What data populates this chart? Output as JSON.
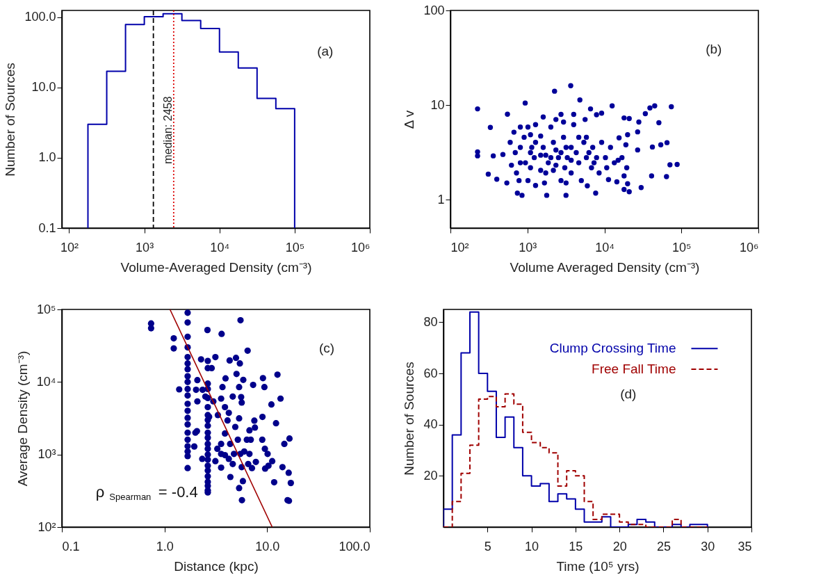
{
  "chart_data": [
    {
      "type": "histogram",
      "xlabel": "Volume-Averaged Density (cm⁻³)",
      "ylabel": "Number of Sources",
      "log": "xy",
      "color": "#0000aa",
      "bins": [
        177.8,
        316.2,
        562.3,
        1000,
        1778,
        3162,
        5623,
        10000,
        17783,
        31623,
        56234,
        100000
      ],
      "values": [
        3,
        17,
        79,
        102,
        112,
        90,
        69,
        32,
        19,
        7,
        5
      ],
      "xlim": [
        80,
        1000000
      ],
      "xticks": [
        {
          "value": 100,
          "label": "10²"
        },
        {
          "value": 1000,
          "label": "10³"
        },
        {
          "value": 10000,
          "label": "10⁴"
        },
        {
          "value": 100000,
          "label": "10⁵"
        },
        {
          "value": 1000000,
          "label": "10⁶"
        }
      ],
      "ylim": [
        0.1,
        125
      ],
      "yticks": [
        0.1,
        {
          "value": 1,
          "label": "1.0"
        },
        {
          "value": 10,
          "label": "10.0"
        },
        {
          "value": 100,
          "label": "100.0"
        }
      ],
      "ref_lines": [
        {
          "axis": "x",
          "value": 1320,
          "color": "#000000",
          "line_style": "dashed"
        },
        {
          "axis": "x",
          "value": 2458,
          "label": "median: 2458",
          "color": "#dd0000",
          "line_style": "dotted"
        }
      ],
      "annotations": [
        "(a)"
      ]
    },
    {
      "type": "scatter",
      "xlabel": "Volume Averaged Density (cm⁻³)",
      "ylabel": "Δ v",
      "log": "xy",
      "series": [
        {
          "type": "scatter",
          "color": "#000099",
          "marker": "circle",
          "x": [
            225,
            225,
            225,
            330,
            310,
            360,
            400,
            480,
            550,
            540,
            740,
            850,
            935,
            2250,
            3650,
            4800,
            3170,
            1780,
            12600,
            45000,
            39000,
            74000,
            34000,
            28000,
            51000,
            27000,
            65000,
            54000,
            42000,
            71000,
            88000,
            41000,
            64000,
            30000,
            27000,
            21000,
            18000,
            20000,
            19000,
            19500,
            18000,
            20000,
            21000,
            18000,
            15500,
            14500,
            11300,
            9200,
            7900,
            6600,
            7700,
            6000,
            597,
            695,
            809,
            620,
            721,
            778,
            906,
            1016,
            1096,
            1138,
            1227,
            1096,
            1016,
            1275,
            1486,
            1603,
            1729,
            1866,
            1486,
            1664,
            2014,
            2173,
            2344,
            2529,
            2173,
            2729,
            2944,
            3177,
            3296,
            3057,
            3698,
            3990,
            4305,
            4645,
            5012,
            5408,
            5834,
            6295,
            7047,
            6792,
            7907,
            8531,
            9204,
            10310,
            10715,
            11995,
            13450,
            15070,
            16900,
            2944,
            2344,
            1603,
            1275,
            809,
            668,
            3990,
            2729,
            3698,
            4645,
            5610,
            1096,
            1486,
            2014,
            2729,
            3698,
            5834,
            7328,
            2344,
            1275,
            809,
            942,
            1729,
            3177
          ],
          "values": [
            9.1,
            3.2,
            2.9,
            5.8,
            1.86,
            2.9,
            1.64,
            3.0,
            8.0,
            1.5,
            1.17,
            1.11,
            10.5,
            14,
            16,
            11.3,
            1.11,
            1.11,
            9.8,
            9.8,
            9.3,
            9.6,
            8.1,
            6.6,
            6.5,
            5.2,
            4.0,
            3.8,
            3.6,
            2.33,
            2.35,
            1.78,
            1.75,
            1.34,
            3.35,
            7.2,
            7.3,
            4.85,
            3.8,
            2.17,
            1.78,
            1.47,
            1.21,
            1.28,
            4.5,
            1.54,
            1.63,
            8.2,
            7.9,
            9.1,
            1.17,
            1.4,
            4.03,
            3.14,
            2.45,
            2.31,
            1.91,
            1.59,
            4.56,
            5.84,
            4.85,
            3.56,
            2.78,
            2.17,
            1.59,
            1.41,
            4.7,
            3.56,
            2.95,
            2.45,
            2.04,
            1.5,
            5.84,
            4.03,
            3.34,
            2.78,
            2.04,
            1.59,
            4.56,
            3.56,
            2.78,
            2.17,
            1.91,
            6.21,
            3.14,
            2.45,
            1.59,
            4.03,
            4.56,
            3.14,
            3.56,
            2.17,
            2.78,
            1.91,
            4.03,
            2.78,
            2.17,
            3.56,
            2.45,
            2.61,
            2.78,
            6.6,
            7.03,
            7.48,
            6.21,
            5.84,
            5.16,
            7.96,
            7.96,
            2.61,
            4.56,
            7.03,
            3.14,
            2.95,
            2.78,
            3.14,
            3.56,
            2.78,
            2.45,
            2.31,
            4.03,
            3.56,
            2.45,
            1.91,
            1.5
          ]
        }
      ],
      "xlim": [
        100,
        1000000
      ],
      "xticks": [
        {
          "value": 100,
          "label": "10²"
        },
        {
          "value": 1000,
          "label": "10³"
        },
        {
          "value": 10000,
          "label": "10⁴"
        },
        {
          "value": 100000,
          "label": "10⁵"
        },
        {
          "value": 1000000,
          "label": "10⁶"
        }
      ],
      "ylim": [
        0.5,
        100
      ],
      "yticks": [
        1,
        10,
        100
      ],
      "annotations": [
        "(b)"
      ]
    },
    {
      "type": "scatter",
      "xlabel": "Distance (kpc)",
      "ylabel": "Average Density (cm⁻³)",
      "log": "xy",
      "series": [
        {
          "type": "scatter",
          "color": "#00008b",
          "marker": "circle",
          "x": [
            0.74,
            0.74,
            1.23,
            1.23,
            1.39,
            1.68,
            1.68,
            1.68,
            1.68,
            1.68,
            1.68,
            1.68,
            1.68,
            1.68,
            1.68,
            1.68,
            1.68,
            1.68,
            1.68,
            1.68,
            1.68,
            1.68,
            1.68,
            1.68,
            1.68,
            1.68,
            2.64,
            2.64,
            2.64,
            2.64,
            2.64,
            2.64,
            2.64,
            2.64,
            2.64,
            2.64,
            2.64,
            2.64,
            2.64,
            2.64,
            2.64,
            2.64,
            2.64,
            2.64,
            2.64,
            2.64,
            2.64,
            2.64,
            2.62,
            3.6,
            5.5,
            6.45,
            3.13,
            4.97,
            5.42,
            4.31,
            2.27,
            2.88,
            3.93,
            5.03,
            5.85,
            7.3,
            9.1,
            9.4,
            12.6,
            13.5,
            11,
            12.2,
            16.5,
            14.7,
            8.96,
            9.0,
            7.5,
            7.6,
            9.5,
            10.1,
            11.2,
            9.55,
            10.3,
            14.1,
            16.2,
            17,
            11.7,
            15.8,
            16.3,
            5.68,
            5.33,
            5.8,
            4.38,
            3.56,
            3.13,
            2.33,
            1.95,
            2.07,
            2.0,
            2.09,
            2.09,
            2.03,
            2.35,
            2.5,
            2.72,
            2.99,
            3.31,
            3.56,
            3.67,
            3.88,
            4.23,
            4.62,
            4.89,
            5.18,
            5.48,
            5.98,
            6.34,
            6.92,
            6.72,
            6.53,
            7.11,
            7.76,
            5.65,
            4.23,
            4.75,
            4.36,
            3.88,
            3.56,
            3.56,
            4.11,
            5.33,
            5.65,
            5.33,
            5.58,
            6.72,
            3.88,
            3.27,
            4.62
          ],
          "values": [
            64000,
            55000,
            40000,
            29000,
            7900,
            90000,
            66000,
            42000,
            30000,
            22000,
            18000,
            15000,
            12000,
            10000,
            8000,
            6500,
            5000,
            4000,
            3200,
            2600,
            2000,
            1600,
            1300,
            1100,
            950,
            650,
            19500,
            15500,
            9500,
            8000,
            6000,
            4500,
            3500,
            3000,
            2500,
            2000,
            1700,
            1400,
            1200,
            1000,
            850,
            700,
            600,
            500,
            420,
            370,
            320,
            300,
            52000,
            46000,
            71000,
            27000,
            22000,
            21500,
            18000,
            19800,
            20500,
            15500,
            11200,
            12900,
            10700,
            9100,
            11300,
            8500,
            12600,
            5900,
            4900,
            2700,
            1660,
            1400,
            1600,
            3300,
            2930,
            2350,
            1200,
            1020,
            810,
            640,
            700,
            670,
            560,
            405,
            415,
            235,
            230,
            235,
            345,
            430,
            490,
            660,
            810,
            870,
            1290,
            2100,
            2000,
            5400,
            10600,
            7800,
            7800,
            6300,
            3300,
            5400,
            3500,
            5900,
            8500,
            4500,
            3750,
            6300,
            2400,
            1600,
            1020,
            1100,
            1600,
            1600,
            1020,
            740,
            650,
            790,
            670,
            870,
            1020,
            1400,
            1950,
            1400,
            1020,
            2950,
            3150,
            5200,
            8500,
            6200,
            2150,
            980,
            1200,
            740
          ]
        },
        {
          "type": "line",
          "color": "#a00000",
          "x": [
            1.13,
            11.2
          ],
          "values": [
            100000,
            100
          ]
        }
      ],
      "xlim": [
        0.1,
        100
      ],
      "xticks": [
        0.1,
        {
          "value": 1,
          "label": "1.0"
        },
        {
          "value": 10,
          "label": "10.0"
        },
        {
          "value": 100,
          "label": "100.0"
        }
      ],
      "ylim": [
        100,
        100000
      ],
      "yticks": [
        {
          "value": 100,
          "label": "10²"
        },
        {
          "value": 1000,
          "label": "10³"
        },
        {
          "value": 10000,
          "label": "10⁴"
        },
        {
          "value": 100000,
          "label": "10⁵"
        }
      ],
      "annotations": [
        "(c)",
        "ρ$_{Spearman}$ = -0.4"
      ]
    },
    {
      "type": "histogram",
      "xlabel": "Time (10⁵ yrs)",
      "ylabel": "Number of Sources",
      "legend": "top right",
      "bins": [
        0,
        1,
        2,
        3,
        4,
        5,
        6,
        7,
        8,
        9,
        10,
        11,
        12,
        13,
        14,
        15,
        16,
        17,
        18,
        19,
        20,
        21,
        22,
        23,
        24,
        25,
        26,
        27,
        28,
        29,
        30
      ],
      "series": [
        {
          "name": "Clump Crossing Time",
          "color": "#0000aa",
          "line_style": "solid",
          "values": [
            7,
            36,
            68,
            84,
            60,
            53,
            35,
            43,
            31,
            20,
            16,
            17,
            10,
            13,
            11,
            7,
            2,
            2,
            4,
            0,
            0,
            1,
            3,
            2,
            0,
            0,
            1,
            0,
            1,
            1
          ]
        },
        {
          "name": "Free Fall Time",
          "color": "#a00000",
          "line_style": "dashed",
          "values": [
            0,
            10,
            21,
            32,
            50,
            51,
            47,
            52,
            48,
            37,
            33,
            31,
            29,
            16,
            22,
            20,
            10,
            3,
            5,
            5,
            2,
            1,
            1,
            0,
            0,
            0,
            3,
            0,
            0,
            0
          ]
        }
      ],
      "xlim": [
        0,
        35
      ],
      "xticks": [
        5,
        10,
        15,
        20,
        25,
        30,
        35
      ],
      "ylim": [
        0,
        85
      ],
      "yticks": [
        20,
        40,
        60,
        80
      ],
      "annotations": [
        "(d)"
      ]
    }
  ]
}
